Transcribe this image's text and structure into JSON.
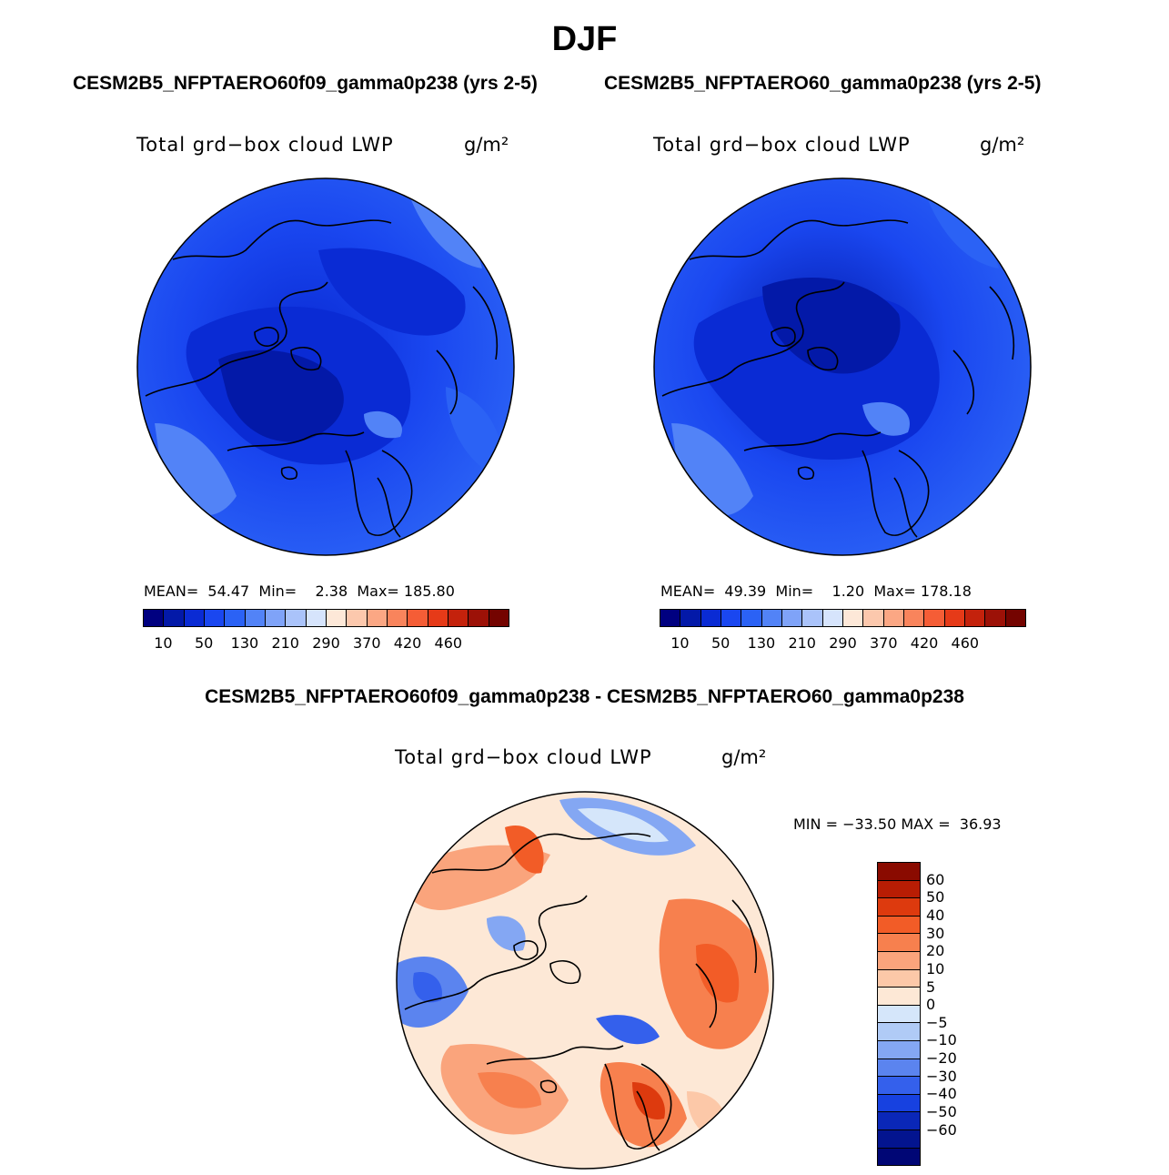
{
  "season": "DJF",
  "panels": {
    "left": {
      "run_title": "CESM2B5_NFPTAERO60f09_gamma0p238 (yrs 2-5)",
      "var_title": "Total grd−box cloud LWP",
      "units": "g/m²",
      "mean_label": "MEAN=",
      "mean": "54.47",
      "min_label": "Min=",
      "min": "2.38",
      "max_label": "Max=",
      "max": "185.80"
    },
    "right": {
      "run_title": "CESM2B5_NFPTAERO60_gamma0p238 (yrs 2-5)",
      "var_title": "Total grd−box cloud LWP",
      "units": "g/m²",
      "mean_label": "MEAN=",
      "mean": "49.39",
      "min_label": "Min=",
      "min": "1.20",
      "max_label": "Max=",
      "max": "178.18"
    },
    "diff": {
      "run_title": "CESM2B5_NFPTAERO60f09_gamma0p238 - CESM2B5_NFPTAERO60_gamma0p238",
      "var_title": "Total grd−box cloud LWP",
      "units": "g/m²",
      "min_label": "MIN =",
      "min": "−33.50",
      "max_label": "MAX =",
      "max": "36.93"
    }
  },
  "abs_colorbar": {
    "colors": [
      "#000080",
      "#0319a8",
      "#0a2bd4",
      "#1a47f0",
      "#2b62f5",
      "#5283f7",
      "#7fa3f8",
      "#aac3fa",
      "#d6e4fc",
      "#fde8d8",
      "#fcc8ad",
      "#fba784",
      "#f9845c",
      "#f55d36",
      "#e63a18",
      "#c4220c",
      "#9c1107",
      "#740400"
    ],
    "tick_labels": [
      "10",
      "50",
      "130",
      "210",
      "290",
      "370",
      "420",
      "460"
    ]
  },
  "diff_colorbar": {
    "colors": [
      "#8a0b00",
      "#b81d04",
      "#dd3a0e",
      "#f25c27",
      "#f7804e",
      "#faa47c",
      "#fcc8a8",
      "#fde8d6",
      "#d5e6fa",
      "#b0cbf6",
      "#84a7f3",
      "#5b84ef",
      "#3460ec",
      "#1741e0",
      "#0a27b8",
      "#03148f",
      "#000675"
    ],
    "tick_labels": [
      "60",
      "50",
      "40",
      "30",
      "20",
      "10",
      "5",
      "0",
      "−5",
      "−10",
      "−20",
      "−30",
      "−40",
      "−50",
      "−60"
    ]
  }
}
